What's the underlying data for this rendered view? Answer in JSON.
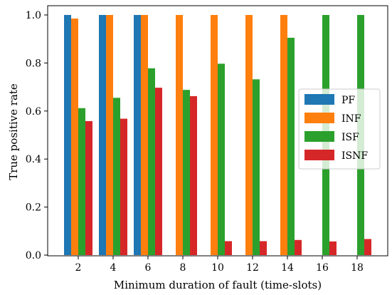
{
  "chart_data": {
    "type": "bar",
    "xlabel": "Minimum duration of fault (time-slots)",
    "ylabel": "True positive rate",
    "categories": [
      "2",
      "4",
      "6",
      "8",
      "10",
      "12",
      "14",
      "16",
      "18"
    ],
    "ylim": [
      0.0,
      1.0
    ],
    "yticks": [
      "0.0",
      "0.2",
      "0.4",
      "0.6",
      "0.8",
      "1.0"
    ],
    "grid": false,
    "legend_position": "right",
    "series": [
      {
        "name": "PF",
        "color": "#1f77b4",
        "values": [
          1.0,
          1.0,
          1.0,
          0.0,
          0.0,
          0.0,
          0.0,
          0.0,
          0.0
        ]
      },
      {
        "name": "INF",
        "color": "#ff7f0e",
        "values": [
          0.985,
          1.0,
          1.0,
          1.0,
          1.0,
          1.0,
          1.0,
          0.0,
          0.0
        ]
      },
      {
        "name": "ISF",
        "color": "#2ca02c",
        "values": [
          0.612,
          0.655,
          0.778,
          0.688,
          0.797,
          0.732,
          0.905,
          1.0,
          1.0
        ]
      },
      {
        "name": "ISNF",
        "color": "#d62728",
        "values": [
          0.558,
          0.568,
          0.697,
          0.662,
          0.058,
          0.058,
          0.063,
          0.057,
          0.067
        ]
      }
    ]
  }
}
